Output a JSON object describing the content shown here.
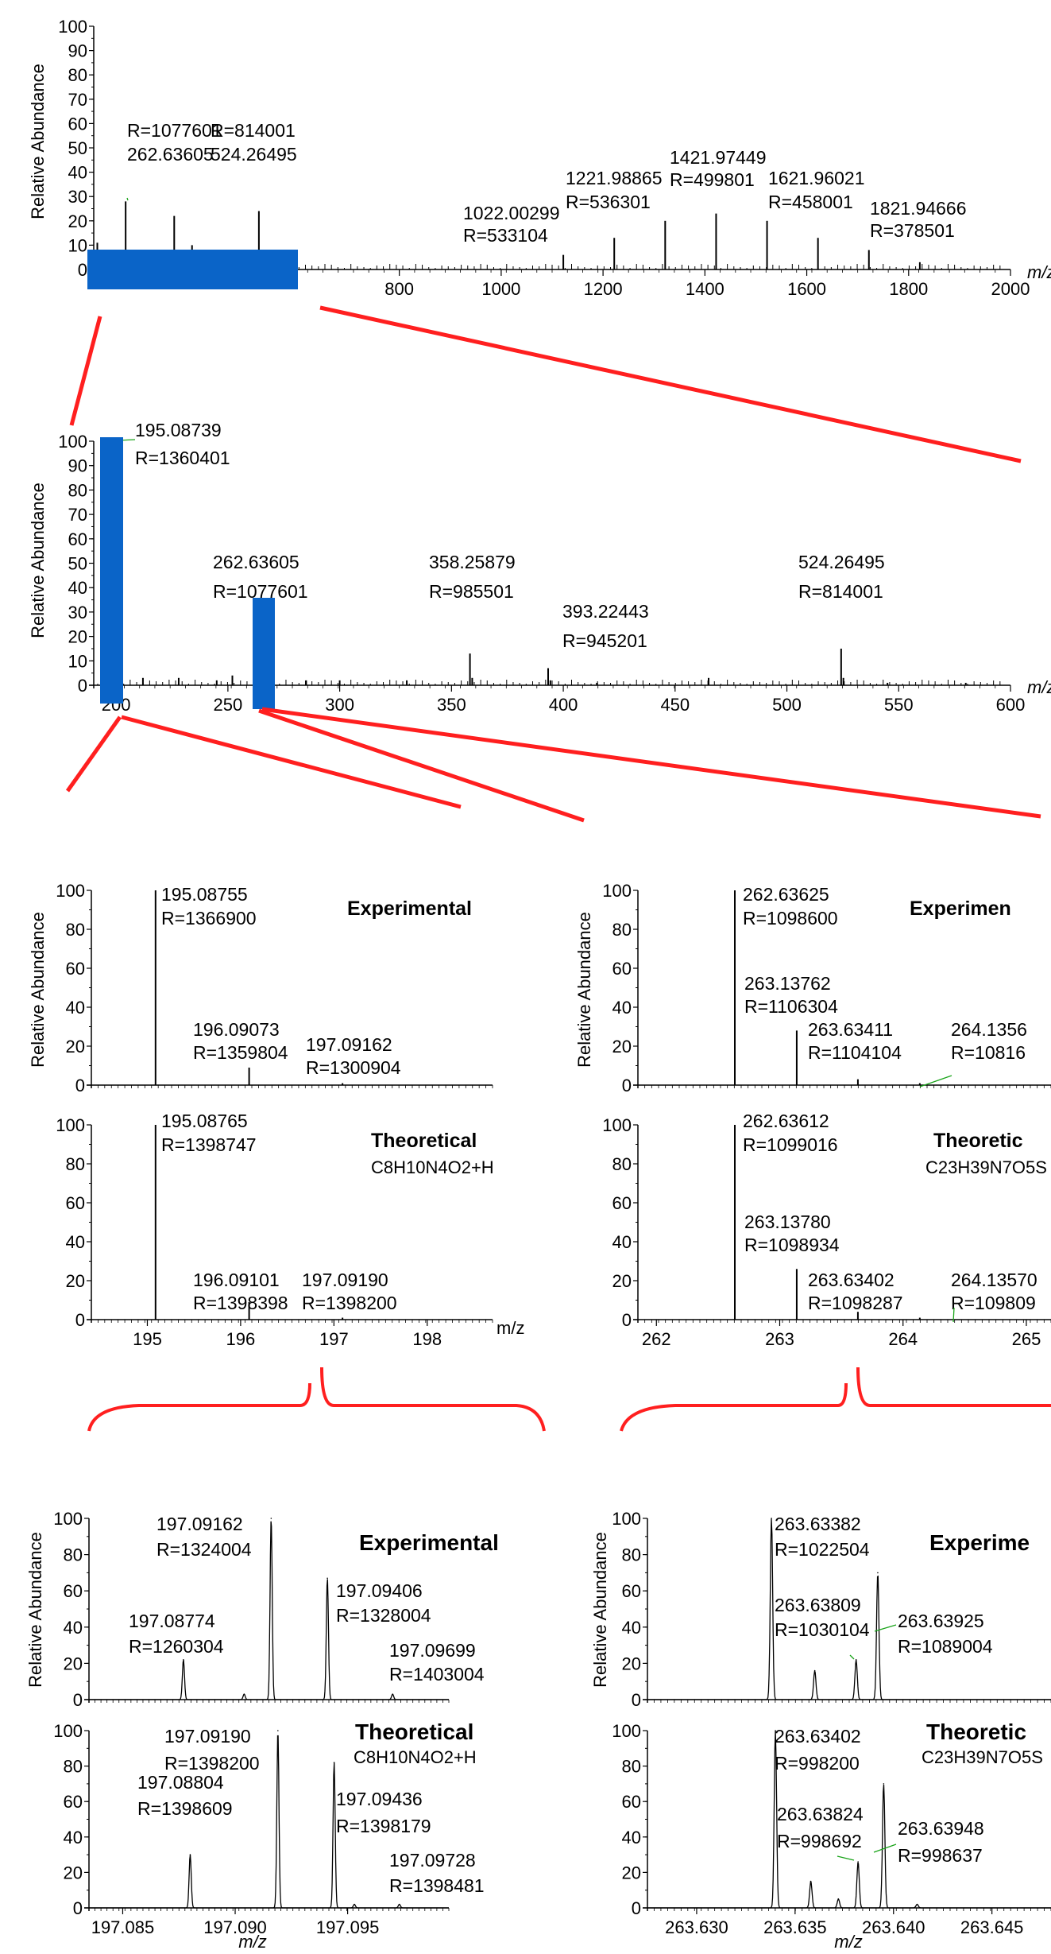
{
  "common": {
    "ylabel": "Relative Abundance",
    "xunit": "m/z",
    "ytick_labels": [
      "0",
      "10",
      "20",
      "30",
      "40",
      "50",
      "60",
      "70",
      "80",
      "90",
      "100"
    ]
  },
  "colors": {
    "highlight": "#0a64c8",
    "zoom_line": "#ff1f1f",
    "leader": "#1aa41a",
    "trace": "#000000"
  },
  "chart_data": [
    {
      "id": "full",
      "type": "line",
      "xlim": [
        200,
        2000
      ],
      "ylim": [
        0,
        100
      ],
      "xtick_labels": [
        "800",
        "1000",
        "1200",
        "1400",
        "1600",
        "1800",
        "2000"
      ],
      "peaks": [
        {
          "x": 207,
          "y": 11
        },
        {
          "x": 262.636,
          "y": 28
        },
        {
          "x": 358,
          "y": 22
        },
        {
          "x": 393,
          "y": 10
        },
        {
          "x": 524.265,
          "y": 24
        },
        {
          "x": 1122,
          "y": 6
        },
        {
          "x": 1222,
          "y": 13
        },
        {
          "x": 1322,
          "y": 20
        },
        {
          "x": 1422,
          "y": 23
        },
        {
          "x": 1522,
          "y": 20
        },
        {
          "x": 1622,
          "y": 13
        },
        {
          "x": 1722,
          "y": 8
        },
        {
          "x": 1822,
          "y": 3
        }
      ],
      "annotations": [
        {
          "mz": "262.63605",
          "r": "R=1077601"
        },
        {
          "mz": "524.26495",
          "r": "R=814001"
        },
        {
          "mz": "1022.00299",
          "r": "R=533104"
        },
        {
          "mz": "1221.98865",
          "r": "R=536301"
        },
        {
          "mz": "1421.97449",
          "r": "R=499801"
        },
        {
          "mz": "1621.96021",
          "r": "R=458001"
        },
        {
          "mz": "1821.94666",
          "r": "R=378501"
        }
      ]
    },
    {
      "id": "zoom",
      "type": "line",
      "xlim": [
        190,
        600
      ],
      "ylim": [
        0,
        100
      ],
      "xtick_labels": [
        "200",
        "250",
        "300",
        "350",
        "400",
        "450",
        "500",
        "550",
        "600"
      ],
      "peaks": [
        {
          "x": 195.087,
          "y": 100
        },
        {
          "x": 196.09,
          "y": 9
        },
        {
          "x": 197.09,
          "y": 6
        },
        {
          "x": 200,
          "y": 4
        },
        {
          "x": 212,
          "y": 3
        },
        {
          "x": 228,
          "y": 3
        },
        {
          "x": 245,
          "y": 2
        },
        {
          "x": 252,
          "y": 4
        },
        {
          "x": 262.636,
          "y": 35
        },
        {
          "x": 263.14,
          "y": 10
        },
        {
          "x": 263.634,
          "y": 5
        },
        {
          "x": 285,
          "y": 2
        },
        {
          "x": 300,
          "y": 2
        },
        {
          "x": 330,
          "y": 2
        },
        {
          "x": 358.259,
          "y": 13
        },
        {
          "x": 359.26,
          "y": 3
        },
        {
          "x": 393.224,
          "y": 7
        },
        {
          "x": 394.23,
          "y": 2
        },
        {
          "x": 415,
          "y": 1
        },
        {
          "x": 465,
          "y": 3
        },
        {
          "x": 524.265,
          "y": 15
        },
        {
          "x": 525.27,
          "y": 3
        },
        {
          "x": 545,
          "y": 1
        },
        {
          "x": 580,
          "y": 1
        }
      ],
      "annotations": [
        {
          "mz": "195.08739",
          "r": "R=1360401"
        },
        {
          "mz": "262.63605",
          "r": "R=1077601"
        },
        {
          "mz": "358.25879",
          "r": "R=985501"
        },
        {
          "mz": "393.22443",
          "r": "R=945201"
        },
        {
          "mz": "524.26495",
          "r": "R=814001"
        }
      ]
    },
    {
      "id": "left_exp",
      "type": "line",
      "xlim": [
        194.4,
        198.7
      ],
      "ylim": [
        0,
        100
      ],
      "ytick_labels": [
        "0",
        "20",
        "40",
        "60",
        "80",
        "100"
      ],
      "peaks": [
        {
          "x": 195.088,
          "y": 100
        },
        {
          "x": 196.091,
          "y": 9
        },
        {
          "x": 197.092,
          "y": 1
        }
      ],
      "title": "Experimental",
      "annotations": [
        {
          "mz": "195.08755",
          "r": "R=1366900"
        },
        {
          "mz": "196.09073",
          "r": "R=1359804"
        },
        {
          "mz": "197.09162",
          "r": "R=1300904"
        }
      ]
    },
    {
      "id": "left_theo",
      "type": "line",
      "xlim": [
        194.4,
        198.7
      ],
      "ylim": [
        0,
        100
      ],
      "ytick_labels": [
        "0",
        "20",
        "40",
        "60",
        "80",
        "100"
      ],
      "xtick_labels": [
        "195",
        "196",
        "197",
        "198"
      ],
      "peaks": [
        {
          "x": 195.088,
          "y": 100
        },
        {
          "x": 196.091,
          "y": 9
        },
        {
          "x": 197.092,
          "y": 1
        }
      ],
      "title": "Theoretical",
      "formula": "C8H10N4O2+H",
      "annotations": [
        {
          "mz": "195.08765",
          "r": "R=1398747"
        },
        {
          "mz": "196.09101",
          "r": "R=1398398"
        },
        {
          "mz": "197.09190",
          "r": "R=1398200"
        }
      ]
    },
    {
      "id": "right_exp",
      "type": "line",
      "xlim": [
        261.85,
        265.2
      ],
      "ylim": [
        0,
        100
      ],
      "ytick_labels": [
        "0",
        "20",
        "40",
        "60",
        "80",
        "100"
      ],
      "peaks": [
        {
          "x": 262.636,
          "y": 100
        },
        {
          "x": 263.138,
          "y": 28
        },
        {
          "x": 263.634,
          "y": 3
        },
        {
          "x": 264.136,
          "y": 1
        }
      ],
      "title": "Experimen",
      "annotations": [
        {
          "mz": "262.63625",
          "r": "R=1098600"
        },
        {
          "mz": "263.13762",
          "r": "R=1106304"
        },
        {
          "mz": "263.63411",
          "r": "R=1104104"
        },
        {
          "mz": "264.1356",
          "r": "R=10816"
        }
      ]
    },
    {
      "id": "right_theo",
      "type": "line",
      "xlim": [
        261.85,
        265.2
      ],
      "ylim": [
        0,
        100
      ],
      "ytick_labels": [
        "0",
        "20",
        "40",
        "60",
        "80",
        "100"
      ],
      "xtick_labels": [
        "262",
        "263",
        "264",
        "265"
      ],
      "peaks": [
        {
          "x": 262.636,
          "y": 100
        },
        {
          "x": 263.138,
          "y": 26
        },
        {
          "x": 263.634,
          "y": 4
        },
        {
          "x": 264.136,
          "y": 1
        }
      ],
      "title": "Theoretic",
      "formula": "C23H39N7O5S",
      "annotations": [
        {
          "mz": "262.63612",
          "r": "R=1099016"
        },
        {
          "mz": "263.13780",
          "r": "R=1098934"
        },
        {
          "mz": "263.63402",
          "r": "R=1098287"
        },
        {
          "mz": "264.13570",
          "r": "R=109809"
        }
      ]
    },
    {
      "id": "fine_left_exp",
      "type": "line",
      "xlim": [
        197.0835,
        197.0995
      ],
      "ylim": [
        0,
        100
      ],
      "ytick_labels": [
        "0",
        "20",
        "40",
        "60",
        "80",
        "100"
      ],
      "peaks": [
        {
          "x": 197.0877,
          "y": 22
        },
        {
          "x": 197.0904,
          "y": 3
        },
        {
          "x": 197.0916,
          "y": 100
        },
        {
          "x": 197.0941,
          "y": 67
        },
        {
          "x": 197.097,
          "y": 3
        }
      ],
      "title": "Experimental",
      "annotations": [
        {
          "mz": "197.09162",
          "r": "R=1324004"
        },
        {
          "mz": "197.09406",
          "r": "R=1328004"
        },
        {
          "mz": "197.08774",
          "r": "R=1260304"
        },
        {
          "mz": "197.09699",
          "r": "R=1403004"
        }
      ]
    },
    {
      "id": "fine_left_theo",
      "type": "line",
      "xlim": [
        197.0835,
        197.0995
      ],
      "ylim": [
        0,
        100
      ],
      "ytick_labels": [
        "0",
        "20",
        "40",
        "60",
        "80",
        "100"
      ],
      "xtick_labels": [
        "197.085",
        "197.090",
        "197.095"
      ],
      "xlabel": "m/z",
      "peaks": [
        {
          "x": 197.088,
          "y": 30
        },
        {
          "x": 197.0919,
          "y": 100
        },
        {
          "x": 197.0944,
          "y": 82
        },
        {
          "x": 197.0953,
          "y": 2
        },
        {
          "x": 197.0973,
          "y": 2
        }
      ],
      "title": "Theoretical",
      "formula": "C8H10N4O2+H",
      "annotations": [
        {
          "mz": "197.09190",
          "r": "R=1398200"
        },
        {
          "mz": "197.09436",
          "r": "R=1398179"
        },
        {
          "mz": "197.08804",
          "r": "R=1398609"
        },
        {
          "mz": "197.09728",
          "r": "R=1398481"
        }
      ]
    },
    {
      "id": "fine_right_exp",
      "type": "line",
      "xlim": [
        263.6275,
        263.648
      ],
      "ylim": [
        0,
        100
      ],
      "ytick_labels": [
        "0",
        "20",
        "40",
        "60",
        "80",
        "100"
      ],
      "peaks": [
        {
          "x": 263.6338,
          "y": 100
        },
        {
          "x": 263.636,
          "y": 16
        },
        {
          "x": 263.6381,
          "y": 22
        },
        {
          "x": 263.6392,
          "y": 70
        }
      ],
      "title": "Experime",
      "annotations": [
        {
          "mz": "263.63382",
          "r": "R=1022504"
        },
        {
          "mz": "263.63809",
          "r": "R=1030104"
        },
        {
          "mz": "263.63925",
          "r": "R=1089004"
        }
      ]
    },
    {
      "id": "fine_right_theo",
      "type": "line",
      "xlim": [
        263.6275,
        263.648
      ],
      "ylim": [
        0,
        100
      ],
      "ytick_labels": [
        "0",
        "20",
        "40",
        "60",
        "80",
        "100"
      ],
      "xtick_labels": [
        "263.630",
        "263.635",
        "263.640",
        "263.645"
      ],
      "xlabel": "m/z",
      "peaks": [
        {
          "x": 263.634,
          "y": 100
        },
        {
          "x": 263.6358,
          "y": 15
        },
        {
          "x": 263.6372,
          "y": 5
        },
        {
          "x": 263.6382,
          "y": 26
        },
        {
          "x": 263.6395,
          "y": 70
        },
        {
          "x": 263.6412,
          "y": 2
        }
      ],
      "title": "Theoretic",
      "formula": "C23H39N7O5S",
      "annotations": [
        {
          "mz": "263.63402",
          "r": "R=998200"
        },
        {
          "mz": "263.63824",
          "r": "R=998692"
        },
        {
          "mz": "263.63948",
          "r": "R=998637"
        }
      ]
    }
  ]
}
